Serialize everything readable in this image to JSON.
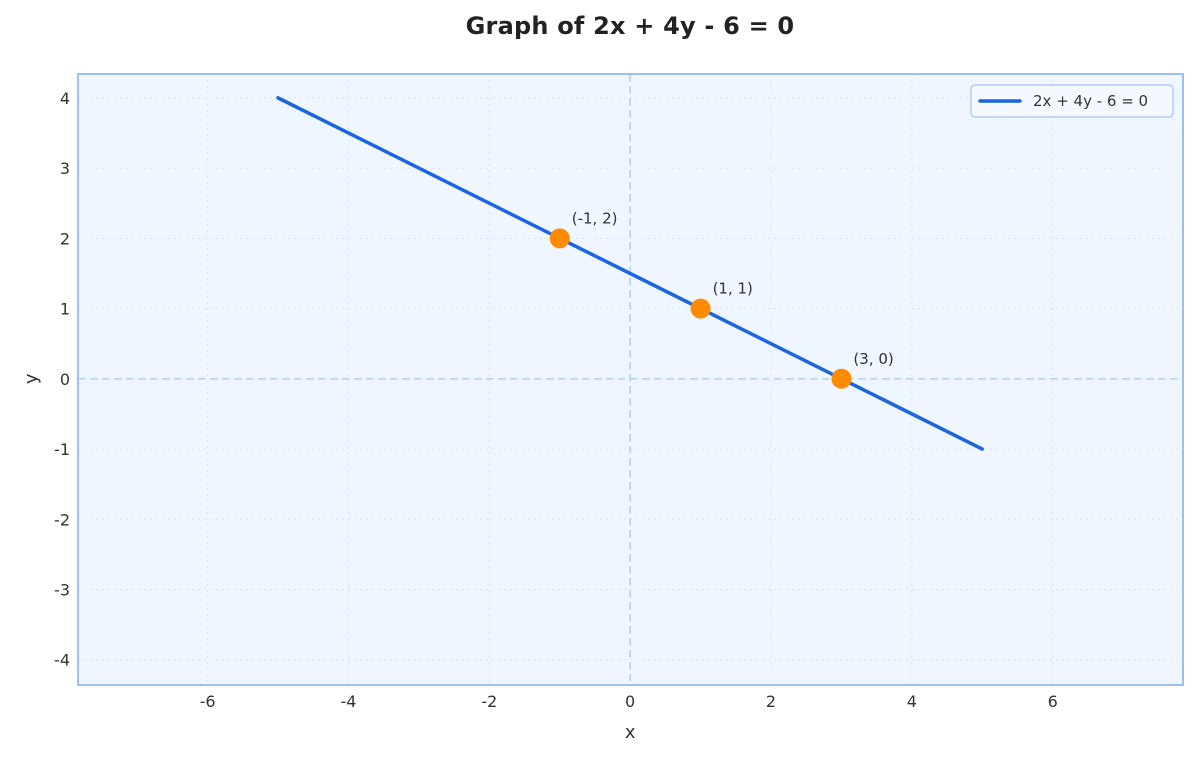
{
  "chart_data": {
    "type": "line",
    "title": "Graph of 2x + 4y - 6 = 0",
    "xlabel": "x",
    "ylabel": "y",
    "xlim": [
      -7.84,
      7.85
    ],
    "ylim": [
      -4.36,
      4.34
    ],
    "x_ticks": [
      -6,
      -4,
      -2,
      0,
      2,
      4,
      6
    ],
    "y_ticks": [
      -4,
      -3,
      -2,
      -1,
      0,
      1,
      2,
      3,
      4
    ],
    "x_tick_labels": [
      "-6",
      "-4",
      "-2",
      "0",
      "2",
      "4",
      "6"
    ],
    "y_tick_labels": [
      "-4",
      "-3",
      "-2",
      "-1",
      "0",
      "1",
      "2",
      "3",
      "4"
    ],
    "grid": true,
    "legend_position": "upper right",
    "series": [
      {
        "name": "2x + 4y - 6 = 0",
        "color": "#1a66e0",
        "x": [
          -5,
          5
        ],
        "y": [
          4,
          -1
        ]
      }
    ],
    "points": [
      {
        "x": -1,
        "y": 2,
        "label": "(-1, 2)"
      },
      {
        "x": 1,
        "y": 1,
        "label": "(1, 1)"
      },
      {
        "x": 3,
        "y": 0,
        "label": "(3, 0)"
      }
    ],
    "point_color": "#ff8c00",
    "reference_lines": [
      {
        "axis": "x",
        "value": 0,
        "style": "dashed"
      },
      {
        "axis": "y",
        "value": 0,
        "style": "dashed"
      }
    ],
    "colors": {
      "plot_background": "#f0f6ff",
      "plot_border": "#9dbff2",
      "grid": "#d4e2f7",
      "reference_line": "#bcd3f2"
    }
  }
}
